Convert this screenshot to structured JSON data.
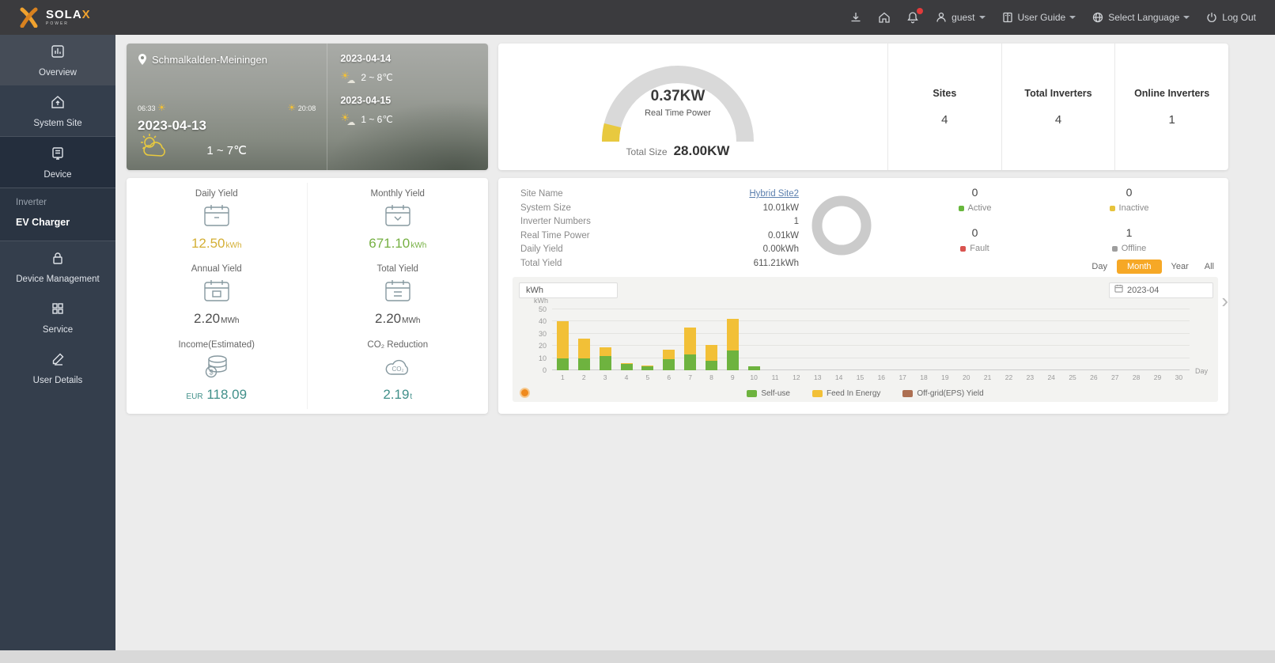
{
  "topbar": {
    "brand": "SOLA",
    "brand_x": "X",
    "brand_sub": "POWER",
    "menu": {
      "user": "guest",
      "user_guide": "User Guide",
      "select_language": "Select Language",
      "logout": "Log Out"
    }
  },
  "sidebar": {
    "items": [
      {
        "label": "Overview"
      },
      {
        "label": "System Site"
      },
      {
        "label": "Device"
      },
      {
        "label": "Inverter"
      },
      {
        "label": "EV Charger"
      },
      {
        "label": "Device Management"
      },
      {
        "label": "Service"
      },
      {
        "label": "User Details"
      }
    ]
  },
  "weather": {
    "location": "Schmalkalden-Meiningen",
    "sunrise": "06:33",
    "sunset": "20:08",
    "current": {
      "date": "2023-04-13",
      "temp": "1 ~ 7℃"
    },
    "forecast": [
      {
        "date": "2023-04-14",
        "temp": "2 ~ 8℃"
      },
      {
        "date": "2023-04-15",
        "temp": "1 ~ 6℃"
      }
    ]
  },
  "power": {
    "real_time_power": "0.37KW",
    "real_time_power_label": "Real Time Power",
    "total_size_label": "Total Size",
    "total_size": "28.00KW",
    "gauge_color": "#e8c93f",
    "stats": [
      {
        "label": "Sites",
        "value": "4"
      },
      {
        "label": "Total Inverters",
        "value": "4"
      },
      {
        "label": "Online Inverters",
        "value": "1"
      }
    ]
  },
  "yield": {
    "cells": [
      {
        "label": "Daily Yield",
        "value": "12.50",
        "unit": "kWh",
        "color": "#d4af35"
      },
      {
        "label": "Monthly Yield",
        "value": "671.10",
        "unit": "kWh",
        "color": "#76b043"
      },
      {
        "label": "Annual Yield",
        "value": "2.20",
        "unit": "MWh",
        "color": "#4f4f4f"
      },
      {
        "label": "Total Yield",
        "value": "2.20",
        "unit": "MWh",
        "color": "#4f4f4f"
      },
      {
        "label": "Income(Estimated)",
        "prefix": "EUR ",
        "value": "118.09",
        "unit": "",
        "color": "#41908a"
      },
      {
        "label": "CO₂ Reduction",
        "value": "2.19",
        "unit": "t",
        "color": "#41908a"
      }
    ]
  },
  "site": {
    "info": [
      {
        "label": "Site Name",
        "value": "Hybrid Site2"
      },
      {
        "label": "System Size",
        "value": "10.01kW"
      },
      {
        "label": "Inverter Numbers",
        "value": "1"
      },
      {
        "label": "Real Time Power",
        "value": "0.01kW"
      },
      {
        "label": "Daily Yield",
        "value": "0.00kWh"
      },
      {
        "label": "Total Yield",
        "value": "611.21kWh"
      }
    ],
    "statuses": [
      {
        "count": "0",
        "label": "Active",
        "color": "#67b73c"
      },
      {
        "count": "0",
        "label": "Inactive",
        "color": "#e6c33c"
      },
      {
        "count": "0",
        "label": "Fault",
        "color": "#d9534f"
      },
      {
        "count": "1",
        "label": "Offline",
        "color": "#9e9e9e"
      }
    ],
    "ranges": [
      {
        "label": "Day"
      },
      {
        "label": "Month",
        "active": true
      },
      {
        "label": "Year"
      },
      {
        "label": "All"
      }
    ],
    "date": "2023-04",
    "unit_select": "kWh"
  },
  "chart_data": {
    "type": "bar",
    "stacked": true,
    "x": [
      1,
      2,
      3,
      4,
      5,
      6,
      7,
      8,
      9,
      10,
      11,
      12,
      13,
      14,
      15,
      16,
      17,
      18,
      19,
      20,
      21,
      22,
      23,
      24,
      25,
      26,
      27,
      28,
      29,
      30
    ],
    "series": [
      {
        "name": "Self-use",
        "color": "#6eb33f",
        "values": [
          10,
          10,
          12,
          5,
          3.5,
          9,
          13,
          8,
          16,
          3,
          0,
          0,
          0,
          0,
          0,
          0,
          0,
          0,
          0,
          0,
          0,
          0,
          0,
          0,
          0,
          0,
          0,
          0,
          0,
          0
        ]
      },
      {
        "name": "Feed In Energy",
        "color": "#f2c037",
        "values": [
          30,
          16,
          7,
          1,
          0.5,
          8,
          22,
          13,
          26,
          0,
          0,
          0,
          0,
          0,
          0,
          0,
          0,
          0,
          0,
          0,
          0,
          0,
          0,
          0,
          0,
          0,
          0,
          0,
          0,
          0
        ]
      },
      {
        "name": "Off-grid(EPS) Yield",
        "color": "#ad6f52",
        "values": [
          0,
          0,
          0,
          0,
          0,
          0,
          0,
          0,
          0,
          0,
          0,
          0,
          0,
          0,
          0,
          0,
          0,
          0,
          0,
          0,
          0,
          0,
          0,
          0,
          0,
          0,
          0,
          0,
          0,
          0
        ]
      }
    ],
    "xlabel": "Day",
    "ylabel": "kWh",
    "y_ticks": [
      0,
      10,
      20,
      30,
      40,
      50
    ],
    "ylim": [
      0,
      55
    ],
    "legend_position": "bottom"
  }
}
